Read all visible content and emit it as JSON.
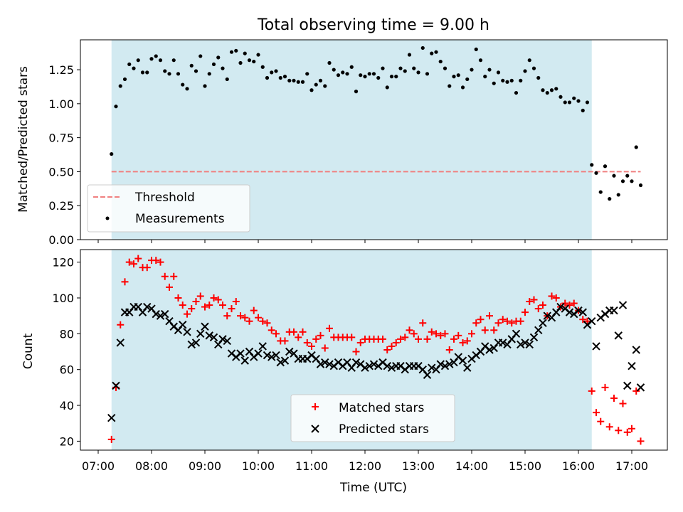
{
  "title": "Total observing time = 9.00 h",
  "colors": {
    "band": "#add8e6",
    "threshold": "#f08080",
    "matched": "#ff0000",
    "predicted": "#000000",
    "measurement": "#000000"
  },
  "chart_data": [
    {
      "type": "scatter",
      "ylabel": "Matched/Predicted stars",
      "ylim": [
        0,
        1.47
      ],
      "yticks": [
        0,
        0.25,
        0.5,
        0.75,
        1.0,
        1.25
      ],
      "ytick_labels": [
        "0.00",
        "0.25",
        "0.50",
        "0.75",
        "1.00",
        "1.25"
      ],
      "observing_window": [
        "07:15",
        "16:15"
      ],
      "threshold": {
        "name": "Threshold",
        "value": 0.5,
        "x_range": [
          "07:15",
          "17:10"
        ]
      },
      "legend": {
        "placement": "lower-left",
        "entries": [
          "Threshold",
          "Measurements"
        ]
      },
      "series": [
        {
          "name": "Measurements",
          "x": [
            "07:15",
            "07:20",
            "07:25",
            "07:30",
            "07:35",
            "07:40",
            "07:45",
            "07:50",
            "07:55",
            "08:00",
            "08:05",
            "08:10",
            "08:15",
            "08:20",
            "08:25",
            "08:30",
            "08:35",
            "08:40",
            "08:45",
            "08:50",
            "08:55",
            "09:00",
            "09:05",
            "09:10",
            "09:15",
            "09:20",
            "09:25",
            "09:30",
            "09:35",
            "09:40",
            "09:45",
            "09:50",
            "09:55",
            "10:00",
            "10:05",
            "10:10",
            "10:15",
            "10:20",
            "10:25",
            "10:30",
            "10:35",
            "10:40",
            "10:45",
            "10:50",
            "10:55",
            "11:00",
            "11:05",
            "11:10",
            "11:15",
            "11:20",
            "11:25",
            "11:30",
            "11:35",
            "11:40",
            "11:45",
            "11:50",
            "11:55",
            "12:00",
            "12:05",
            "12:10",
            "12:15",
            "12:20",
            "12:25",
            "12:30",
            "12:35",
            "12:40",
            "12:45",
            "12:50",
            "12:55",
            "13:00",
            "13:05",
            "13:10",
            "13:15",
            "13:20",
            "13:25",
            "13:30",
            "13:35",
            "13:40",
            "13:45",
            "13:50",
            "13:55",
            "14:00",
            "14:05",
            "14:10",
            "14:15",
            "14:20",
            "14:25",
            "14:30",
            "14:35",
            "14:40",
            "14:45",
            "14:50",
            "14:55",
            "15:00",
            "15:05",
            "15:10",
            "15:15",
            "15:20",
            "15:25",
            "15:30",
            "15:35",
            "15:40",
            "15:45",
            "15:50",
            "15:55",
            "16:00",
            "16:05",
            "16:10",
            "16:15",
            "16:20",
            "16:25",
            "16:30",
            "16:35",
            "16:40",
            "16:45",
            "16:50",
            "16:55",
            "17:00",
            "17:05",
            "17:10"
          ],
          "y": [
            0.63,
            0.98,
            1.13,
            1.18,
            1.29,
            1.26,
            1.32,
            1.23,
            1.23,
            1.33,
            1.35,
            1.32,
            1.24,
            1.22,
            1.32,
            1.22,
            1.14,
            1.11,
            1.28,
            1.24,
            1.35,
            1.13,
            1.22,
            1.29,
            1.34,
            1.26,
            1.18,
            1.38,
            1.39,
            1.3,
            1.37,
            1.32,
            1.31,
            1.36,
            1.27,
            1.19,
            1.23,
            1.24,
            1.19,
            1.2,
            1.17,
            1.17,
            1.16,
            1.16,
            1.22,
            1.1,
            1.14,
            1.17,
            1.13,
            1.3,
            1.25,
            1.21,
            1.23,
            1.22,
            1.27,
            1.09,
            1.21,
            1.2,
            1.22,
            1.22,
            1.19,
            1.26,
            1.12,
            1.2,
            1.2,
            1.26,
            1.24,
            1.36,
            1.26,
            1.23,
            1.41,
            1.22,
            1.37,
            1.38,
            1.31,
            1.26,
            1.13,
            1.2,
            1.21,
            1.12,
            1.18,
            1.25,
            1.4,
            1.32,
            1.2,
            1.25,
            1.15,
            1.23,
            1.17,
            1.16,
            1.17,
            1.08,
            1.17,
            1.24,
            1.32,
            1.26,
            1.19,
            1.1,
            1.08,
            1.1,
            1.11,
            1.05,
            1.01,
            1.01,
            1.04,
            1.02,
            0.95,
            1.01,
            0.55,
            0.49,
            0.35,
            0.54,
            0.3,
            0.47,
            0.33,
            0.43,
            0.47,
            0.43,
            0.68,
            0.4
          ]
        }
      ]
    },
    {
      "type": "scatter",
      "xlabel": "Time (UTC)",
      "ylabel": "Count",
      "ylim": [
        15,
        127
      ],
      "yticks": [
        20,
        40,
        60,
        80,
        100,
        120
      ],
      "xticks": [
        "07:00",
        "08:00",
        "09:00",
        "10:00",
        "11:00",
        "12:00",
        "13:00",
        "14:00",
        "15:00",
        "16:00",
        "17:00"
      ],
      "xlim": [
        "06:40",
        "17:40"
      ],
      "observing_window": [
        "07:15",
        "16:15"
      ],
      "legend": {
        "placement": "lower-center",
        "entries": [
          "Matched stars",
          "Predicted stars"
        ]
      },
      "series": [
        {
          "name": "Matched stars",
          "x": [
            "07:15",
            "07:20",
            "07:25",
            "07:30",
            "07:35",
            "07:40",
            "07:45",
            "07:50",
            "07:55",
            "08:00",
            "08:05",
            "08:10",
            "08:15",
            "08:20",
            "08:25",
            "08:30",
            "08:35",
            "08:40",
            "08:45",
            "08:50",
            "08:55",
            "09:00",
            "09:05",
            "09:10",
            "09:15",
            "09:20",
            "09:25",
            "09:30",
            "09:35",
            "09:40",
            "09:45",
            "09:50",
            "09:55",
            "10:00",
            "10:05",
            "10:10",
            "10:15",
            "10:20",
            "10:25",
            "10:30",
            "10:35",
            "10:40",
            "10:45",
            "10:50",
            "10:55",
            "11:00",
            "11:05",
            "11:10",
            "11:15",
            "11:20",
            "11:25",
            "11:30",
            "11:35",
            "11:40",
            "11:45",
            "11:50",
            "11:55",
            "12:00",
            "12:05",
            "12:10",
            "12:15",
            "12:20",
            "12:25",
            "12:30",
            "12:35",
            "12:40",
            "12:45",
            "12:50",
            "12:55",
            "13:00",
            "13:05",
            "13:10",
            "13:15",
            "13:20",
            "13:25",
            "13:30",
            "13:35",
            "13:40",
            "13:45",
            "13:50",
            "13:55",
            "14:00",
            "14:05",
            "14:10",
            "14:15",
            "14:20",
            "14:25",
            "14:30",
            "14:35",
            "14:40",
            "14:45",
            "14:50",
            "14:55",
            "15:00",
            "15:05",
            "15:10",
            "15:15",
            "15:20",
            "15:25",
            "15:30",
            "15:35",
            "15:40",
            "15:45",
            "15:50",
            "15:55",
            "16:00",
            "16:05",
            "16:10",
            "16:15",
            "16:20",
            "16:25",
            "16:30",
            "16:35",
            "16:40",
            "16:45",
            "16:50",
            "16:55",
            "17:00",
            "17:05",
            "17:10"
          ],
          "y": [
            21,
            50,
            85,
            109,
            120,
            119,
            122,
            117,
            117,
            121,
            121,
            120,
            112,
            106,
            112,
            100,
            96,
            91,
            94,
            98,
            101,
            95,
            96,
            100,
            99,
            96,
            90,
            94,
            98,
            90,
            89,
            87,
            93,
            89,
            87,
            86,
            82,
            80,
            76,
            76,
            81,
            81,
            78,
            81,
            75,
            73,
            77,
            79,
            72,
            83,
            78,
            78,
            78,
            78,
            78,
            70,
            75,
            77,
            77,
            77,
            77,
            77,
            71,
            73,
            75,
            77,
            78,
            82,
            80,
            77,
            86,
            77,
            81,
            80,
            79,
            80,
            71,
            77,
            79,
            75,
            76,
            80,
            86,
            88,
            82,
            90,
            82,
            86,
            88,
            87,
            86,
            87,
            87,
            92,
            98,
            99,
            94,
            96,
            90,
            101,
            100,
            95,
            97,
            96,
            97,
            93,
            88,
            87,
            48,
            36,
            31,
            50,
            28,
            44,
            26,
            41,
            25,
            27,
            48,
            20
          ]
        },
        {
          "name": "Predicted stars",
          "x": [
            "07:15",
            "07:20",
            "07:25",
            "07:30",
            "07:35",
            "07:40",
            "07:45",
            "07:50",
            "07:55",
            "08:00",
            "08:05",
            "08:10",
            "08:15",
            "08:20",
            "08:25",
            "08:30",
            "08:35",
            "08:40",
            "08:45",
            "08:50",
            "08:55",
            "09:00",
            "09:05",
            "09:10",
            "09:15",
            "09:20",
            "09:25",
            "09:30",
            "09:35",
            "09:40",
            "09:45",
            "09:50",
            "09:55",
            "10:00",
            "10:05",
            "10:10",
            "10:15",
            "10:20",
            "10:25",
            "10:30",
            "10:35",
            "10:40",
            "10:45",
            "10:50",
            "10:55",
            "11:00",
            "11:05",
            "11:10",
            "11:15",
            "11:20",
            "11:25",
            "11:30",
            "11:35",
            "11:40",
            "11:45",
            "11:50",
            "11:55",
            "12:00",
            "12:05",
            "12:10",
            "12:15",
            "12:20",
            "12:25",
            "12:30",
            "12:35",
            "12:40",
            "12:45",
            "12:50",
            "12:55",
            "13:00",
            "13:05",
            "13:10",
            "13:15",
            "13:20",
            "13:25",
            "13:30",
            "13:35",
            "13:40",
            "13:45",
            "13:50",
            "13:55",
            "14:00",
            "14:05",
            "14:10",
            "14:15",
            "14:20",
            "14:25",
            "14:30",
            "14:35",
            "14:40",
            "14:45",
            "14:50",
            "14:55",
            "15:00",
            "15:05",
            "15:10",
            "15:15",
            "15:20",
            "15:25",
            "15:30",
            "15:35",
            "15:40",
            "15:45",
            "15:50",
            "15:55",
            "16:00",
            "16:05",
            "16:10",
            "16:15",
            "16:20",
            "16:25",
            "16:30",
            "16:35",
            "16:40",
            "16:45",
            "16:50",
            "16:55",
            "17:00",
            "17:05",
            "17:10"
          ],
          "y": [
            33,
            51,
            75,
            92,
            92,
            95,
            95,
            92,
            95,
            94,
            91,
            90,
            91,
            87,
            84,
            82,
            85,
            81,
            74,
            75,
            80,
            84,
            79,
            78,
            74,
            77,
            76,
            69,
            67,
            69,
            65,
            70,
            67,
            69,
            73,
            68,
            67,
            68,
            64,
            65,
            70,
            69,
            66,
            66,
            66,
            68,
            66,
            63,
            64,
            63,
            62,
            64,
            62,
            64,
            61,
            64,
            63,
            61,
            62,
            63,
            62,
            64,
            62,
            61,
            62,
            62,
            60,
            62,
            62,
            62,
            60,
            57,
            61,
            60,
            63,
            62,
            63,
            64,
            67,
            65,
            61,
            66,
            68,
            70,
            73,
            71,
            72,
            75,
            75,
            74,
            77,
            80,
            74,
            75,
            74,
            78,
            82,
            86,
            90,
            89,
            92,
            95,
            94,
            92,
            91,
            93,
            92,
            85,
            87,
            73,
            89,
            91,
            93,
            93,
            79,
            96,
            51,
            62,
            71,
            50
          ]
        }
      ]
    }
  ]
}
